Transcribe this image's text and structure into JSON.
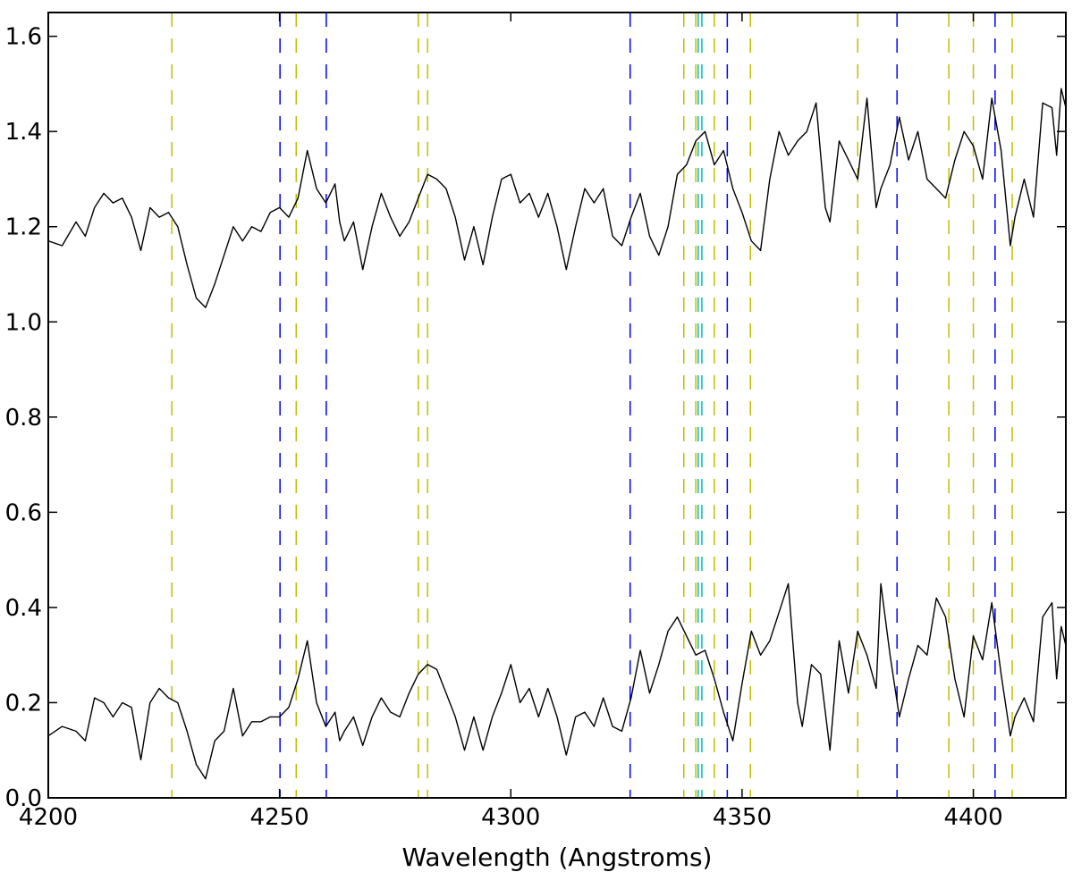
{
  "chart_data": {
    "type": "line",
    "title": "",
    "xlabel": "Wavelength (Angstroms)",
    "ylabel": "",
    "xlim": [
      4200,
      4420
    ],
    "ylim": [
      0.0,
      1.65
    ],
    "x_ticks": [
      4200,
      4250,
      4300,
      4350,
      4400
    ],
    "y_ticks": [
      0.0,
      0.2,
      0.4,
      0.6,
      0.8,
      1.0,
      1.2,
      1.4,
      1.6
    ],
    "grid": false,
    "legend": "none",
    "series": [
      {
        "color": "#000000",
        "points": [
          [
            4200,
            1.17
          ],
          [
            4203,
            1.16
          ],
          [
            4206,
            1.21
          ],
          [
            4208,
            1.18
          ],
          [
            4210,
            1.24
          ],
          [
            4212,
            1.27
          ],
          [
            4214,
            1.25
          ],
          [
            4216,
            1.26
          ],
          [
            4218,
            1.22
          ],
          [
            4220,
            1.15
          ],
          [
            4222,
            1.24
          ],
          [
            4224,
            1.22
          ],
          [
            4226,
            1.23
          ],
          [
            4228,
            1.2
          ],
          [
            4230,
            1.12
          ],
          [
            4232,
            1.05
          ],
          [
            4234,
            1.03
          ],
          [
            4236,
            1.08
          ],
          [
            4238,
            1.14
          ],
          [
            4240,
            1.2
          ],
          [
            4242,
            1.17
          ],
          [
            4244,
            1.2
          ],
          [
            4246,
            1.19
          ],
          [
            4248,
            1.23
          ],
          [
            4250,
            1.24
          ],
          [
            4252,
            1.22
          ],
          [
            4254,
            1.26
          ],
          [
            4256,
            1.36
          ],
          [
            4258,
            1.28
          ],
          [
            4260,
            1.25
          ],
          [
            4262,
            1.29
          ],
          [
            4263,
            1.21
          ],
          [
            4264,
            1.17
          ],
          [
            4266,
            1.21
          ],
          [
            4268,
            1.11
          ],
          [
            4270,
            1.2
          ],
          [
            4272,
            1.27
          ],
          [
            4274,
            1.22
          ],
          [
            4276,
            1.18
          ],
          [
            4278,
            1.21
          ],
          [
            4280,
            1.26
          ],
          [
            4282,
            1.31
          ],
          [
            4284,
            1.3
          ],
          [
            4286,
            1.28
          ],
          [
            4288,
            1.22
          ],
          [
            4290,
            1.13
          ],
          [
            4292,
            1.2
          ],
          [
            4294,
            1.12
          ],
          [
            4296,
            1.22
          ],
          [
            4298,
            1.3
          ],
          [
            4300,
            1.31
          ],
          [
            4302,
            1.25
          ],
          [
            4304,
            1.27
          ],
          [
            4306,
            1.22
          ],
          [
            4308,
            1.27
          ],
          [
            4310,
            1.2
          ],
          [
            4312,
            1.11
          ],
          [
            4314,
            1.2
          ],
          [
            4316,
            1.28
          ],
          [
            4318,
            1.25
          ],
          [
            4320,
            1.28
          ],
          [
            4322,
            1.18
          ],
          [
            4324,
            1.16
          ],
          [
            4326,
            1.22
          ],
          [
            4328,
            1.27
          ],
          [
            4330,
            1.18
          ],
          [
            4332,
            1.14
          ],
          [
            4334,
            1.2
          ],
          [
            4336,
            1.31
          ],
          [
            4338,
            1.33
          ],
          [
            4340,
            1.38
          ],
          [
            4342,
            1.4
          ],
          [
            4344,
            1.33
          ],
          [
            4346,
            1.36
          ],
          [
            4348,
            1.28
          ],
          [
            4350,
            1.23
          ],
          [
            4352,
            1.17
          ],
          [
            4354,
            1.15
          ],
          [
            4356,
            1.3
          ],
          [
            4358,
            1.4
          ],
          [
            4360,
            1.35
          ],
          [
            4362,
            1.38
          ],
          [
            4364,
            1.4
          ],
          [
            4366,
            1.46
          ],
          [
            4368,
            1.24
          ],
          [
            4369,
            1.21
          ],
          [
            4371,
            1.38
          ],
          [
            4373,
            1.34
          ],
          [
            4375,
            1.3
          ],
          [
            4377,
            1.47
          ],
          [
            4379,
            1.24
          ],
          [
            4380,
            1.28
          ],
          [
            4382,
            1.33
          ],
          [
            4384,
            1.43
          ],
          [
            4386,
            1.34
          ],
          [
            4388,
            1.4
          ],
          [
            4390,
            1.3
          ],
          [
            4392,
            1.28
          ],
          [
            4394,
            1.26
          ],
          [
            4396,
            1.34
          ],
          [
            4398,
            1.4
          ],
          [
            4400,
            1.37
          ],
          [
            4402,
            1.3
          ],
          [
            4404,
            1.47
          ],
          [
            4406,
            1.36
          ],
          [
            4408,
            1.16
          ],
          [
            4409,
            1.22
          ],
          [
            4411,
            1.3
          ],
          [
            4413,
            1.22
          ],
          [
            4415,
            1.46
          ],
          [
            4417,
            1.45
          ],
          [
            4418,
            1.35
          ],
          [
            4419,
            1.49
          ],
          [
            4420,
            1.45
          ]
        ]
      },
      {
        "color": "#000000",
        "points": [
          [
            4200,
            0.13
          ],
          [
            4203,
            0.15
          ],
          [
            4206,
            0.14
          ],
          [
            4208,
            0.12
          ],
          [
            4210,
            0.21
          ],
          [
            4212,
            0.2
          ],
          [
            4214,
            0.17
          ],
          [
            4216,
            0.2
          ],
          [
            4218,
            0.19
          ],
          [
            4220,
            0.08
          ],
          [
            4222,
            0.2
          ],
          [
            4224,
            0.23
          ],
          [
            4226,
            0.21
          ],
          [
            4228,
            0.2
          ],
          [
            4230,
            0.14
          ],
          [
            4232,
            0.07
          ],
          [
            4234,
            0.04
          ],
          [
            4236,
            0.12
          ],
          [
            4238,
            0.14
          ],
          [
            4240,
            0.23
          ],
          [
            4242,
            0.13
          ],
          [
            4244,
            0.16
          ],
          [
            4246,
            0.16
          ],
          [
            4248,
            0.17
          ],
          [
            4250,
            0.17
          ],
          [
            4252,
            0.19
          ],
          [
            4254,
            0.25
          ],
          [
            4256,
            0.33
          ],
          [
            4258,
            0.2
          ],
          [
            4260,
            0.15
          ],
          [
            4262,
            0.18
          ],
          [
            4263,
            0.12
          ],
          [
            4264,
            0.14
          ],
          [
            4266,
            0.17
          ],
          [
            4268,
            0.11
          ],
          [
            4270,
            0.17
          ],
          [
            4272,
            0.21
          ],
          [
            4274,
            0.18
          ],
          [
            4276,
            0.17
          ],
          [
            4278,
            0.22
          ],
          [
            4280,
            0.26
          ],
          [
            4282,
            0.28
          ],
          [
            4284,
            0.27
          ],
          [
            4286,
            0.22
          ],
          [
            4288,
            0.17
          ],
          [
            4290,
            0.1
          ],
          [
            4292,
            0.17
          ],
          [
            4294,
            0.1
          ],
          [
            4296,
            0.17
          ],
          [
            4298,
            0.22
          ],
          [
            4300,
            0.28
          ],
          [
            4302,
            0.2
          ],
          [
            4304,
            0.23
          ],
          [
            4306,
            0.17
          ],
          [
            4308,
            0.23
          ],
          [
            4310,
            0.17
          ],
          [
            4312,
            0.09
          ],
          [
            4314,
            0.17
          ],
          [
            4316,
            0.18
          ],
          [
            4318,
            0.15
          ],
          [
            4320,
            0.21
          ],
          [
            4322,
            0.15
          ],
          [
            4324,
            0.14
          ],
          [
            4326,
            0.21
          ],
          [
            4328,
            0.31
          ],
          [
            4330,
            0.22
          ],
          [
            4332,
            0.28
          ],
          [
            4334,
            0.35
          ],
          [
            4336,
            0.38
          ],
          [
            4338,
            0.34
          ],
          [
            4340,
            0.3
          ],
          [
            4342,
            0.31
          ],
          [
            4344,
            0.25
          ],
          [
            4346,
            0.18
          ],
          [
            4348,
            0.12
          ],
          [
            4350,
            0.24
          ],
          [
            4352,
            0.35
          ],
          [
            4354,
            0.3
          ],
          [
            4356,
            0.33
          ],
          [
            4358,
            0.39
          ],
          [
            4360,
            0.45
          ],
          [
            4362,
            0.2
          ],
          [
            4363,
            0.15
          ],
          [
            4365,
            0.28
          ],
          [
            4367,
            0.26
          ],
          [
            4369,
            0.1
          ],
          [
            4371,
            0.33
          ],
          [
            4373,
            0.22
          ],
          [
            4375,
            0.35
          ],
          [
            4377,
            0.3
          ],
          [
            4379,
            0.23
          ],
          [
            4380,
            0.45
          ],
          [
            4382,
            0.3
          ],
          [
            4384,
            0.17
          ],
          [
            4386,
            0.25
          ],
          [
            4388,
            0.32
          ],
          [
            4390,
            0.3
          ],
          [
            4392,
            0.42
          ],
          [
            4394,
            0.38
          ],
          [
            4396,
            0.25
          ],
          [
            4398,
            0.17
          ],
          [
            4400,
            0.34
          ],
          [
            4402,
            0.29
          ],
          [
            4404,
            0.41
          ],
          [
            4406,
            0.26
          ],
          [
            4408,
            0.13
          ],
          [
            4409,
            0.17
          ],
          [
            4411,
            0.21
          ],
          [
            4413,
            0.16
          ],
          [
            4415,
            0.38
          ],
          [
            4417,
            0.41
          ],
          [
            4418,
            0.25
          ],
          [
            4419,
            0.36
          ],
          [
            4420,
            0.32
          ]
        ]
      }
    ],
    "reference_lines": [
      {
        "x": 4226.7,
        "color": "#bfbf00"
      },
      {
        "x": 4250.1,
        "color": "#0000ff"
      },
      {
        "x": 4253.6,
        "color": "#bfbf00"
      },
      {
        "x": 4260.1,
        "color": "#0000ff"
      },
      {
        "x": 4280.0,
        "color": "#bfbf00"
      },
      {
        "x": 4282.0,
        "color": "#bfbf00"
      },
      {
        "x": 4325.8,
        "color": "#0000ff"
      },
      {
        "x": 4337.4,
        "color": "#bfbf00"
      },
      {
        "x": 4340.0,
        "color": "#bfbf00"
      },
      {
        "x": 4340.5,
        "color": "#00bfbf"
      },
      {
        "x": 4341.3,
        "color": "#00bfbf"
      },
      {
        "x": 4344.0,
        "color": "#bfbf00"
      },
      {
        "x": 4346.8,
        "color": "#0000ff"
      },
      {
        "x": 4351.8,
        "color": "#bfbf00"
      },
      {
        "x": 4375.0,
        "color": "#bfbf00"
      },
      {
        "x": 4383.5,
        "color": "#0000ff"
      },
      {
        "x": 4394.7,
        "color": "#bfbf00"
      },
      {
        "x": 4400.0,
        "color": "#bfbf00"
      },
      {
        "x": 4404.7,
        "color": "#0000ff"
      },
      {
        "x": 4408.4,
        "color": "#bfbf00"
      }
    ]
  }
}
